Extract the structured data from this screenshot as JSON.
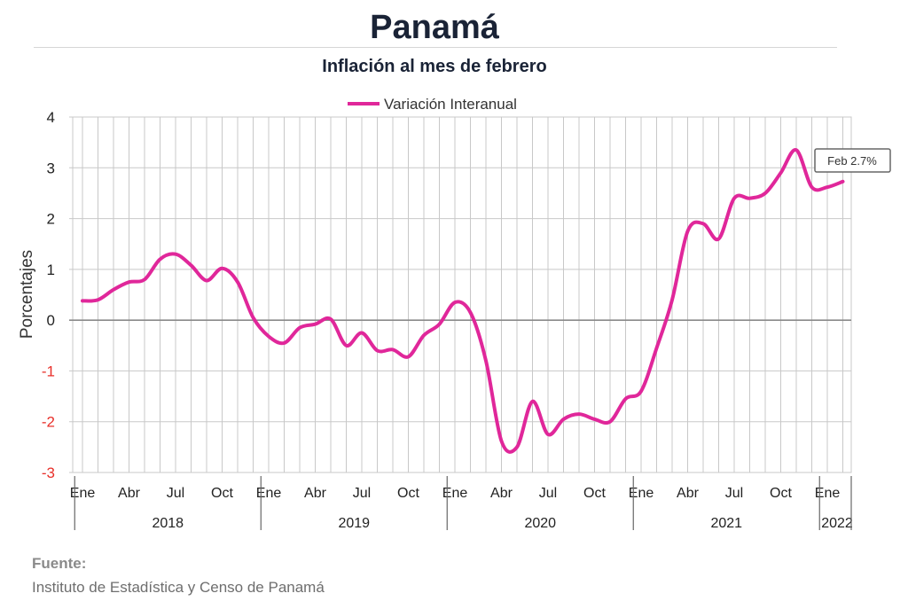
{
  "header": {
    "title": "Panamá",
    "subtitle": "Inflación al mes de febrero"
  },
  "footer": {
    "source_label": "Fuente:",
    "source_text": "Instituto de Estadística y Censo de Panamá"
  },
  "chart_data": {
    "type": "line",
    "title": "Inflación al mes de febrero",
    "ylabel": "Porcentajes",
    "xlabel": "",
    "ylim": [
      -3,
      4
    ],
    "yticks": [
      4,
      3,
      2,
      1,
      0,
      -1,
      -2,
      -3
    ],
    "grid": true,
    "legend_position": "top",
    "colors": {
      "series": "#e0279a",
      "negative_tick": "#e8302a",
      "tick": "#222222",
      "grid": "#c8c8c8",
      "zero": "#8a8a8a"
    },
    "x_month_labels": [
      "Ene",
      "Abr",
      "Jul",
      "Oct",
      "Ene",
      "Abr",
      "Jul",
      "Oct",
      "Ene",
      "Abr",
      "Jul",
      "Oct",
      "Ene",
      "Abr",
      "Jul",
      "Oct",
      "Ene"
    ],
    "x_month_label_indices": [
      0,
      3,
      6,
      9,
      12,
      15,
      18,
      21,
      24,
      27,
      30,
      33,
      36,
      39,
      42,
      45,
      48
    ],
    "x_years": [
      "2018",
      "2019",
      "2020",
      "2021",
      "2022"
    ],
    "x": [
      "2018-01",
      "2018-02",
      "2018-03",
      "2018-04",
      "2018-05",
      "2018-06",
      "2018-07",
      "2018-08",
      "2018-09",
      "2018-10",
      "2018-11",
      "2018-12",
      "2019-01",
      "2019-02",
      "2019-03",
      "2019-04",
      "2019-05",
      "2019-06",
      "2019-07",
      "2019-08",
      "2019-09",
      "2019-10",
      "2019-11",
      "2019-12",
      "2020-01",
      "2020-02",
      "2020-03",
      "2020-04",
      "2020-05",
      "2020-06",
      "2020-07",
      "2020-08",
      "2020-09",
      "2020-10",
      "2020-11",
      "2020-12",
      "2021-01",
      "2021-02",
      "2021-03",
      "2021-04",
      "2021-05",
      "2021-06",
      "2021-07",
      "2021-08",
      "2021-09",
      "2021-10",
      "2021-11",
      "2021-12",
      "2022-01",
      "2022-02"
    ],
    "series": [
      {
        "name": "Variación Interanual",
        "values": [
          0.38,
          0.4,
          0.6,
          0.75,
          0.8,
          1.2,
          1.3,
          1.08,
          0.78,
          1.02,
          0.75,
          0.05,
          -0.32,
          -0.45,
          -0.15,
          -0.08,
          0.02,
          -0.5,
          -0.25,
          -0.6,
          -0.58,
          -0.72,
          -0.3,
          -0.08,
          0.35,
          0.15,
          -0.8,
          -2.38,
          -2.5,
          -1.6,
          -2.25,
          -1.95,
          -1.85,
          -1.95,
          -2.0,
          -1.55,
          -1.4,
          -0.55,
          0.4,
          1.75,
          1.9,
          1.6,
          2.4,
          2.4,
          2.5,
          2.9,
          3.35,
          2.62,
          2.62,
          2.73
        ]
      }
    ],
    "annotation": {
      "text": "Feb 2.7%"
    }
  }
}
